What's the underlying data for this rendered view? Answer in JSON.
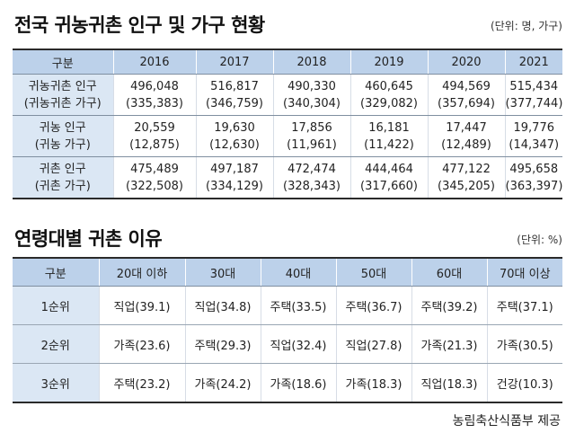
{
  "section1": {
    "title": "전국 귀농귀촌 인구 및 가구 현황",
    "unit": "(단위: 명, 가구)",
    "headers": [
      "구분",
      "2016",
      "2017",
      "2018",
      "2019",
      "2020",
      "2021"
    ],
    "rows": [
      {
        "label": "귀농귀촌 인구",
        "sublabel": "(귀농귀촌 가구)",
        "values": [
          "496,048",
          "516,817",
          "490,330",
          "460,645",
          "494,569",
          "515,434"
        ],
        "subvalues": [
          "(335,383)",
          "(346,759)",
          "(340,304)",
          "(329,082)",
          "(357,694)",
          "(377,744)"
        ]
      },
      {
        "label": "귀농 인구",
        "sublabel": "(귀농 가구)",
        "values": [
          "20,559",
          "19,630",
          "17,856",
          "16,181",
          "17,447",
          "19,776"
        ],
        "subvalues": [
          "(12,875)",
          "(12,630)",
          "(11,961)",
          "(11,422)",
          "(12,489)",
          "(14,347)"
        ]
      },
      {
        "label": "귀촌 인구",
        "sublabel": "(귀촌 가구)",
        "values": [
          "475,489",
          "497,187",
          "472,474",
          "444,464",
          "477,122",
          "495,658"
        ],
        "subvalues": [
          "(322,508)",
          "(334,129)",
          "(328,343)",
          "(317,660)",
          "(345,205)",
          "(363,397)"
        ]
      }
    ]
  },
  "section2": {
    "title": "연령대별 귀촌 이유",
    "unit": "(단위: %)",
    "headers": [
      "구분",
      "20대 이하",
      "30대",
      "40대",
      "50대",
      "60대",
      "70대 이상"
    ],
    "rows": [
      {
        "label": "1순위",
        "cells": [
          "직업(39.1)",
          "직업(34.8)",
          "주택(33.5)",
          "주택(36.7)",
          "주택(39.2)",
          "주택(37.1)"
        ]
      },
      {
        "label": "2순위",
        "cells": [
          "가족(23.6)",
          "주택(29.3)",
          "직업(32.4)",
          "직업(27.8)",
          "가족(21.3)",
          "가족(30.5)"
        ]
      },
      {
        "label": "3순위",
        "cells": [
          "주택(23.2)",
          "가족(24.2)",
          "가족(18.6)",
          "가족(18.3)",
          "직업(18.3)",
          "건강(10.3)"
        ]
      }
    ]
  },
  "source": "농림축산식품부 제공"
}
